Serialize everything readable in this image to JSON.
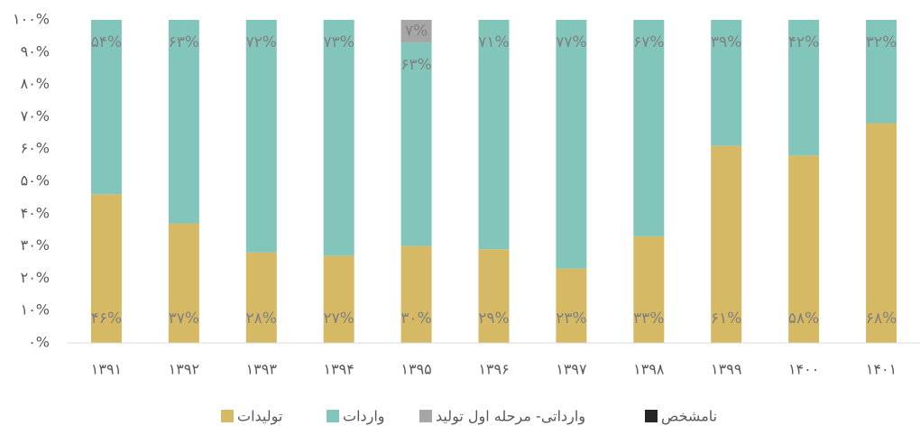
{
  "chart_data": {
    "type": "stacked_bar",
    "categories": [
      "۱۳۹۱",
      "۱۳۹۲",
      "۱۳۹۳",
      "۱۳۹۴",
      "۱۳۹۵",
      "۱۳۹۶",
      "۱۳۹۷",
      "۱۳۹۸",
      "۱۳۹۹",
      "۱۴۰۰",
      "۱۴۰۱"
    ],
    "series": [
      {
        "name": "تولیدات",
        "color": "#d6b964",
        "values": [
          46,
          37,
          28,
          27,
          30,
          29,
          23,
          33,
          61,
          58,
          68
        ],
        "value_labels": [
          "۴۶%",
          "۳۷%",
          "۲۸%",
          "۲۷%",
          "۳۰%",
          "۲۹%",
          "۲۳%",
          "۳۳%",
          "۶۱%",
          "۵۸%",
          "۶۸%"
        ]
      },
      {
        "name": "واردات",
        "color": "#82c5bb",
        "values": [
          54,
          63,
          72,
          73,
          63,
          71,
          77,
          67,
          39,
          42,
          32
        ],
        "value_labels": [
          "۵۴%",
          "۶۳%",
          "۷۲%",
          "۷۳%",
          "۶۳%",
          "۷۱%",
          "۷۷%",
          "۶۷%",
          "۳۹%",
          "۴۲%",
          "۳۲%"
        ]
      },
      {
        "name": "وارداتی- مرحله اول تولید",
        "color": "#a6a6a6",
        "values": [
          null,
          null,
          null,
          null,
          7,
          null,
          null,
          null,
          null,
          null,
          null
        ],
        "value_labels": [
          null,
          null,
          null,
          null,
          "۷%",
          null,
          null,
          null,
          null,
          null,
          null
        ]
      },
      {
        "name": "نامشخص",
        "color": "#262626",
        "values": [
          null,
          null,
          null,
          null,
          null,
          null,
          null,
          null,
          null,
          null,
          null
        ]
      }
    ],
    "ylim": [
      0,
      100
    ],
    "yticks": [
      {
        "value": 0,
        "label": "۰%"
      },
      {
        "value": 10,
        "label": "۱۰%"
      },
      {
        "value": 20,
        "label": "۲۰%"
      },
      {
        "value": 30,
        "label": "۳۰%"
      },
      {
        "value": 40,
        "label": "۴۰%"
      },
      {
        "value": 50,
        "label": "۵۰%"
      },
      {
        "value": 60,
        "label": "۶۰%"
      },
      {
        "value": 70,
        "label": "۷۰%"
      },
      {
        "value": 80,
        "label": "۸۰%"
      },
      {
        "value": 90,
        "label": "۹۰%"
      },
      {
        "value": 100,
        "label": "۱۰۰%"
      }
    ],
    "legend": "bottom"
  }
}
